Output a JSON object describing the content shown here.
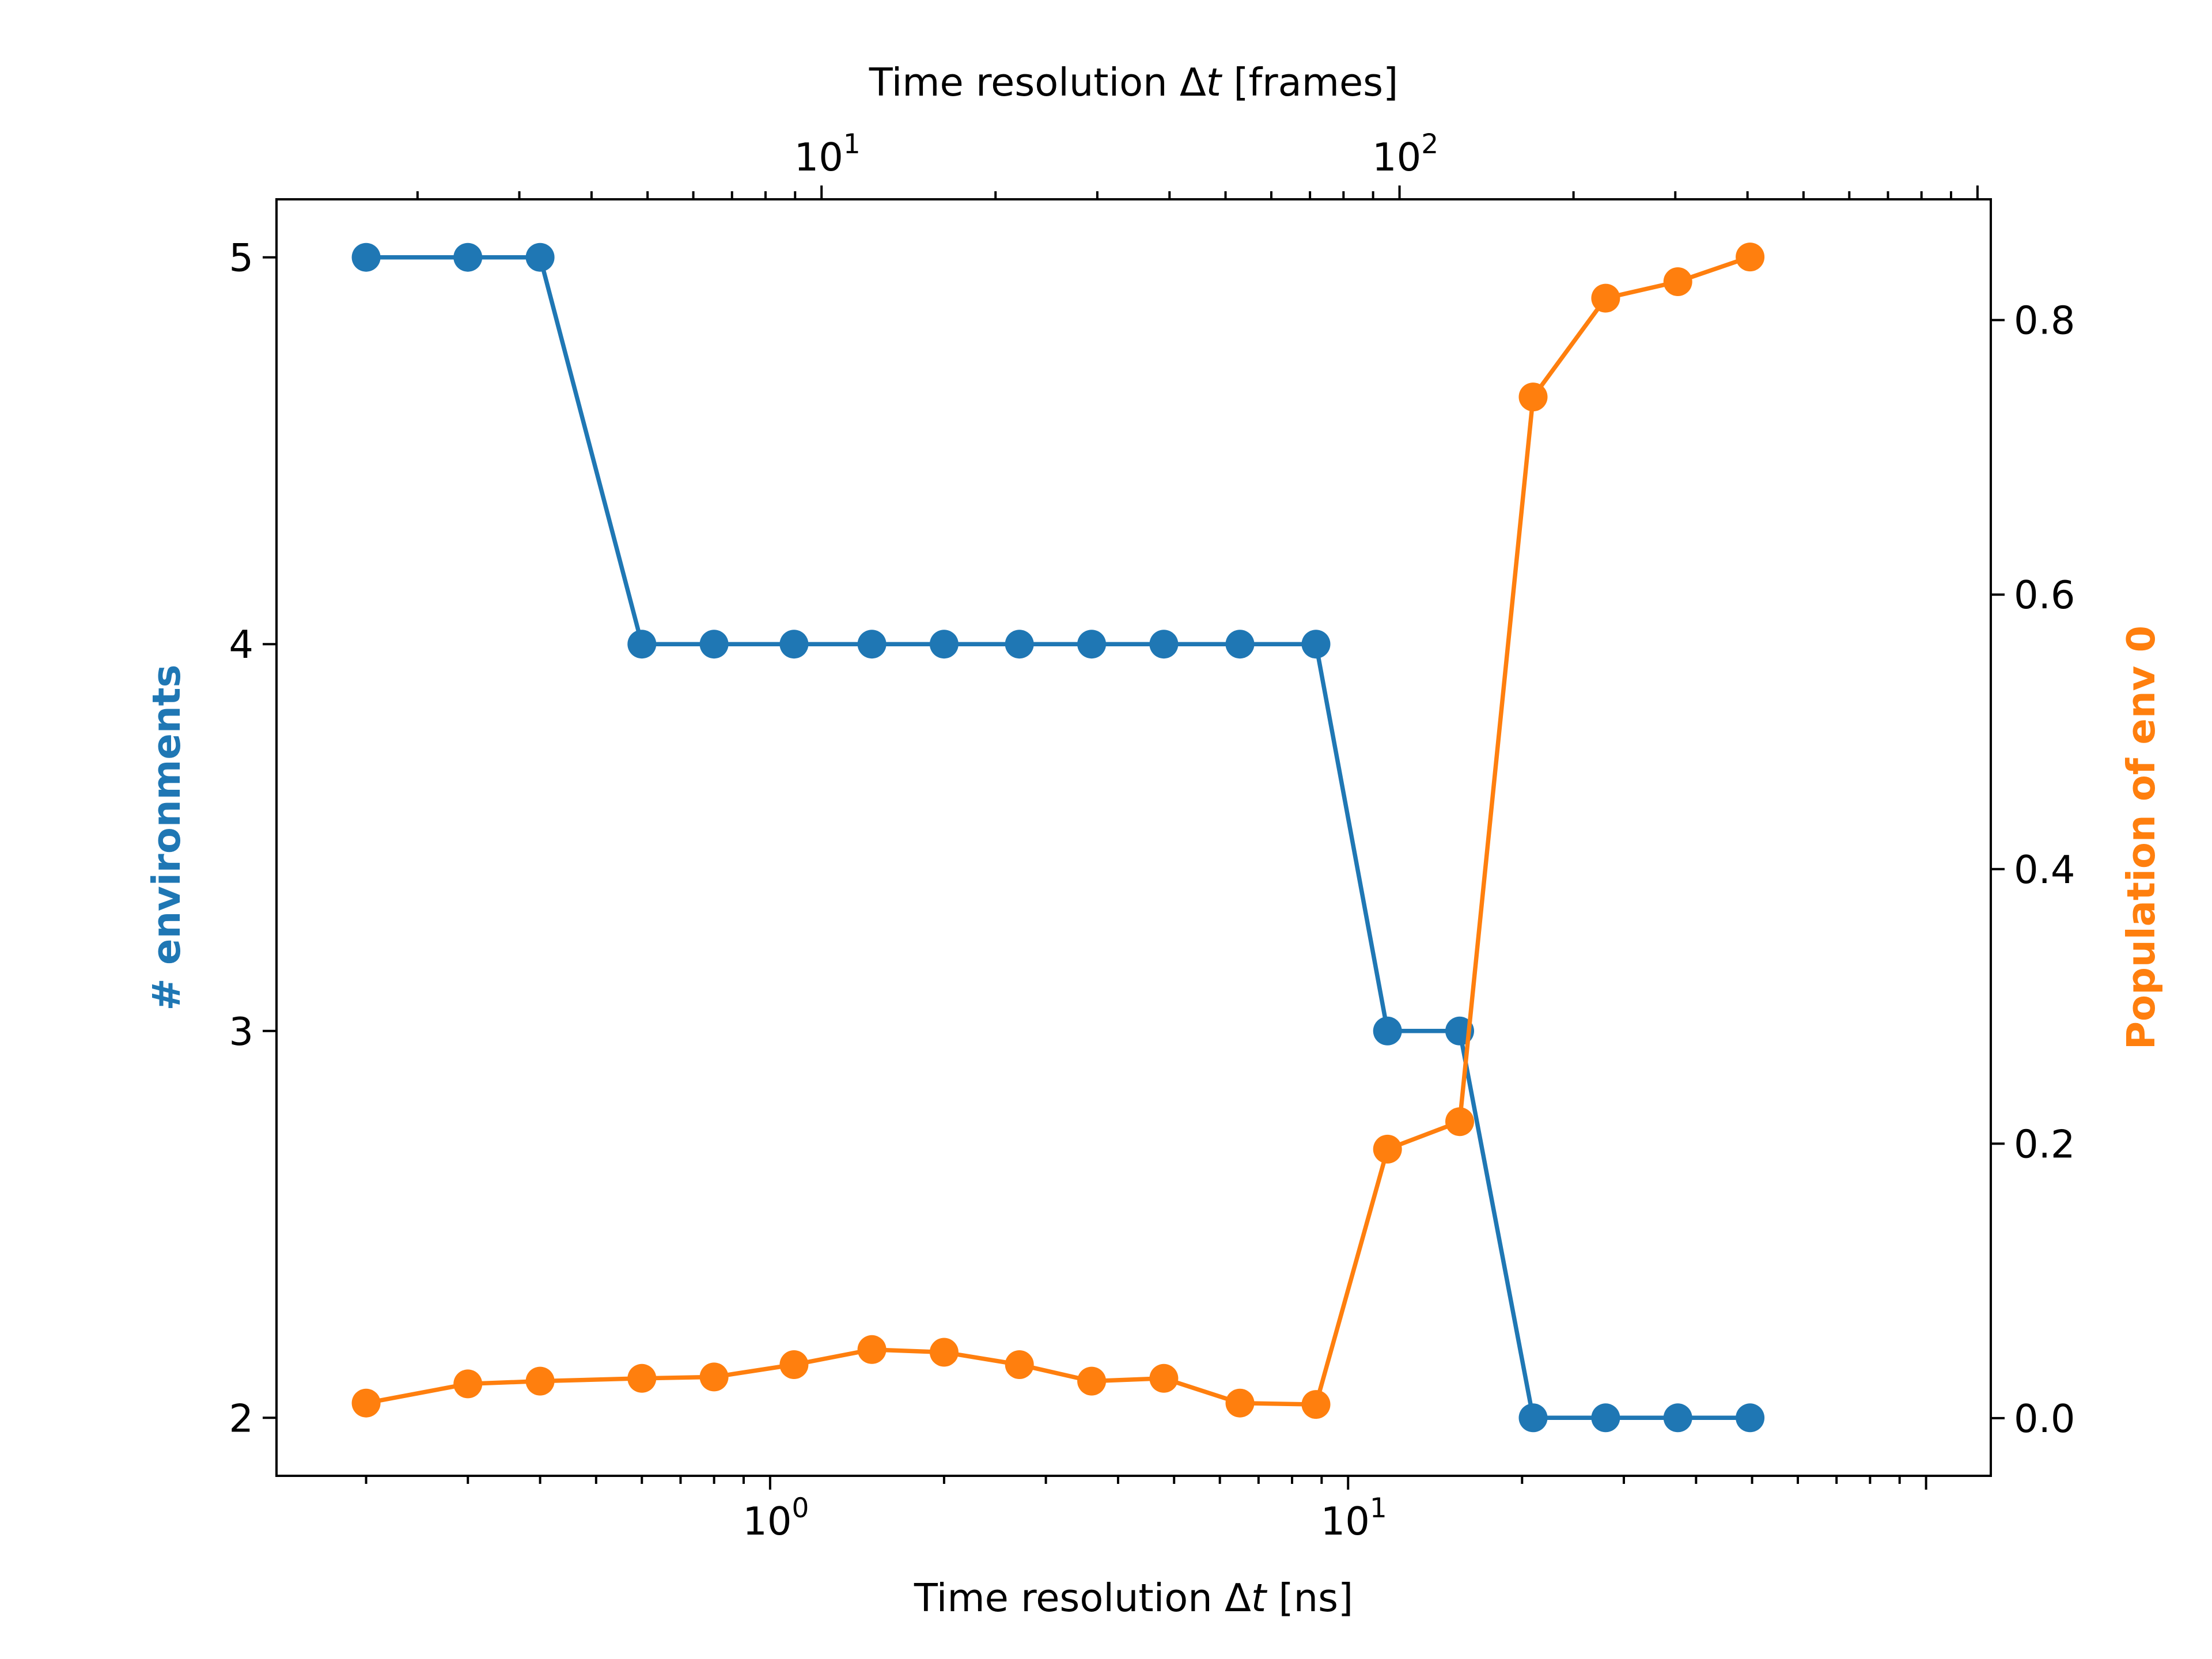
{
  "chart_data": {
    "type": "line",
    "xlabel_bottom": {
      "prefix": "Time resolution Δ",
      "var": "t",
      "suffix": " [ns]"
    },
    "xlabel_top": {
      "prefix": "Time resolution Δ",
      "var": "t",
      "suffix": " [frames]"
    },
    "ylabel_left": "# environments",
    "ylabel_right": "Population of env 0",
    "x_scale": "log",
    "x_bottom_ticks": [
      {
        "value": 1,
        "base": "10",
        "exp": "0"
      },
      {
        "value": 10,
        "base": "10",
        "exp": "1"
      }
    ],
    "x_top_ticks": [
      {
        "value": 10,
        "base": "10",
        "exp": "1"
      },
      {
        "value": 100,
        "base": "10",
        "exp": "2"
      }
    ],
    "y_left_ticks": [
      "2",
      "3",
      "4",
      "5"
    ],
    "y_right_ticks": [
      "0.0",
      "0.2",
      "0.4",
      "0.6",
      "0.8"
    ],
    "grid": false,
    "series": [
      {
        "name": "# environments",
        "color": "#1f77b4",
        "axis": "left",
        "x": [
          0.2,
          0.3,
          0.4,
          0.6,
          0.8,
          1.1,
          1.5,
          2.0,
          2.7,
          3.6,
          4.8,
          6.5,
          8.8,
          11.7,
          15.6,
          20.9,
          27.9,
          37.2,
          49.6
        ],
        "y": [
          5,
          5,
          5,
          4,
          4,
          4,
          4,
          4,
          4,
          4,
          4,
          4,
          4,
          3,
          3,
          2,
          2,
          2,
          2
        ]
      },
      {
        "name": "Population of env 0",
        "color": "#ff7f0e",
        "axis": "right",
        "x": [
          0.2,
          0.3,
          0.4,
          0.6,
          0.8,
          1.1,
          1.5,
          2.0,
          2.7,
          3.6,
          4.8,
          6.5,
          8.8,
          11.7,
          15.6,
          20.9,
          27.9,
          37.2,
          49.6
        ],
        "y": [
          0.011,
          0.025,
          0.027,
          0.029,
          0.03,
          0.039,
          0.05,
          0.048,
          0.039,
          0.027,
          0.029,
          0.011,
          0.01,
          0.196,
          0.216,
          0.744,
          0.816,
          0.828,
          0.846
        ]
      }
    ]
  }
}
